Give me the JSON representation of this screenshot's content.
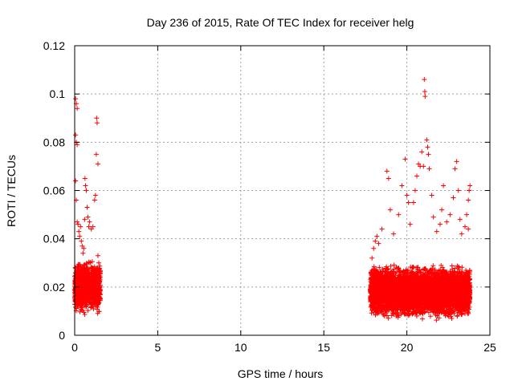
{
  "chart_data": {
    "type": "scatter",
    "title": "Day 236 of 2015, Rate Of TEC Index for receiver helg",
    "xlabel": "GPS time / hours",
    "ylabel": "ROTI / TECUs",
    "xlim": [
      0,
      25
    ],
    "ylim": [
      0,
      0.12
    ],
    "xticks": [
      0,
      5,
      10,
      15,
      20,
      25
    ],
    "yticks": [
      0,
      0.02,
      0.04,
      0.06,
      0.08,
      0.1,
      0.12
    ],
    "xtick_labels": [
      "0",
      "5",
      "10",
      "15",
      "20",
      "25"
    ],
    "ytick_labels": [
      "0",
      "0.02",
      "0.04",
      "0.06",
      "0.08",
      "0.1",
      "0.12"
    ],
    "grid": true,
    "marker": "plus",
    "color": "#ff0000",
    "series": [
      {
        "points": [
          [
            0.05,
            0.098
          ],
          [
            0.1,
            0.096
          ],
          [
            0.15,
            0.094
          ],
          [
            0.05,
            0.083
          ],
          [
            0.1,
            0.08
          ],
          [
            0.15,
            0.079
          ],
          [
            0.05,
            0.064
          ],
          [
            0.1,
            0.056
          ],
          [
            0.15,
            0.047
          ],
          [
            0.2,
            0.046
          ],
          [
            0.25,
            0.043
          ],
          [
            0.3,
            0.041
          ],
          [
            0.35,
            0.045
          ],
          [
            0.4,
            0.039
          ],
          [
            0.45,
            0.037
          ],
          [
            0.5,
            0.034
          ],
          [
            0.55,
            0.036
          ],
          [
            0.6,
            0.048
          ],
          [
            0.62,
            0.065
          ],
          [
            0.65,
            0.062
          ],
          [
            0.7,
            0.06
          ],
          [
            0.75,
            0.053
          ],
          [
            0.8,
            0.049
          ],
          [
            0.85,
            0.045
          ],
          [
            0.9,
            0.047
          ],
          [
            1.0,
            0.044
          ],
          [
            1.1,
            0.045
          ],
          [
            1.2,
            0.056
          ],
          [
            1.25,
            0.058
          ],
          [
            1.3,
            0.075
          ],
          [
            1.32,
            0.09
          ],
          [
            1.35,
            0.088
          ],
          [
            1.4,
            0.071
          ],
          [
            1.4,
            0.033
          ],
          [
            1.45,
            0.03
          ],
          [
            17.9,
            0.032
          ],
          [
            18.0,
            0.036
          ],
          [
            18.1,
            0.039
          ],
          [
            18.2,
            0.041
          ],
          [
            18.3,
            0.038
          ],
          [
            18.5,
            0.044
          ],
          [
            18.8,
            0.068
          ],
          [
            18.9,
            0.065
          ],
          [
            19.0,
            0.052
          ],
          [
            19.2,
            0.042
          ],
          [
            19.5,
            0.05
          ],
          [
            19.7,
            0.062
          ],
          [
            19.9,
            0.073
          ],
          [
            20.0,
            0.058
          ],
          [
            20.1,
            0.055
          ],
          [
            20.2,
            0.046
          ],
          [
            20.4,
            0.055
          ],
          [
            20.5,
            0.06
          ],
          [
            20.6,
            0.066
          ],
          [
            20.7,
            0.071
          ],
          [
            20.8,
            0.07
          ],
          [
            20.9,
            0.076
          ],
          [
            21.0,
            0.07
          ],
          [
            21.05,
            0.106
          ],
          [
            21.08,
            0.101
          ],
          [
            21.1,
            0.099
          ],
          [
            21.2,
            0.081
          ],
          [
            21.25,
            0.078
          ],
          [
            21.3,
            0.075
          ],
          [
            21.35,
            0.069
          ],
          [
            21.5,
            0.058
          ],
          [
            21.6,
            0.049
          ],
          [
            21.8,
            0.043
          ],
          [
            22.0,
            0.046
          ],
          [
            22.1,
            0.052
          ],
          [
            22.2,
            0.062
          ],
          [
            22.4,
            0.047
          ],
          [
            22.6,
            0.05
          ],
          [
            22.8,
            0.057
          ],
          [
            22.9,
            0.069
          ],
          [
            23.0,
            0.072
          ],
          [
            23.1,
            0.06
          ],
          [
            23.2,
            0.048
          ],
          [
            23.3,
            0.042
          ],
          [
            23.5,
            0.045
          ],
          [
            23.6,
            0.05
          ],
          [
            23.7,
            0.056
          ],
          [
            23.8,
            0.062
          ],
          [
            23.75,
            0.06
          ],
          [
            23.7,
            0.044
          ]
        ],
        "dense_bands": [
          {
            "x": [
              0.0,
              1.55
            ],
            "y": [
              0.008,
              0.032
            ]
          },
          {
            "x": [
              17.8,
              23.8
            ],
            "y": [
              0.006,
              0.03
            ]
          }
        ]
      }
    ]
  }
}
